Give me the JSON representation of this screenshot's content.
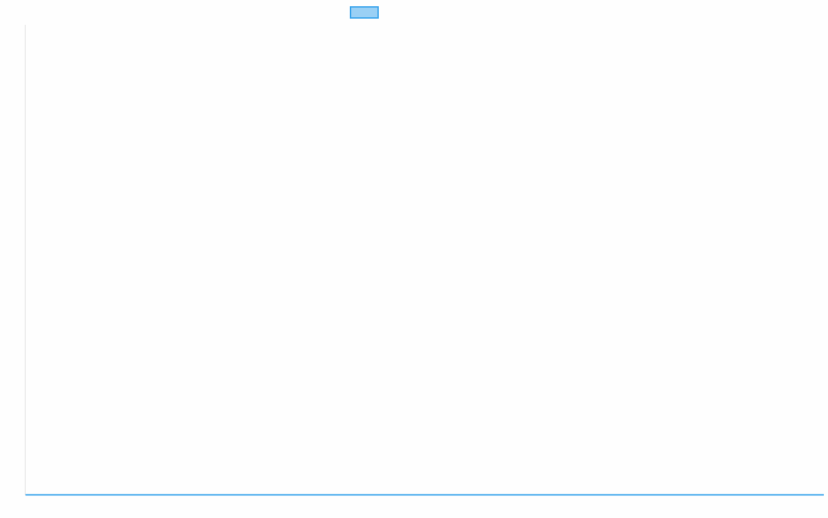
{
  "chart_data": {
    "type": "line",
    "title": "",
    "xlabel": "",
    "ylabel": "",
    "categories": [],
    "series": [
      {
        "values": [],
        "color": "#36a2eb",
        "fill": "#9ad0f5"
      }
    ],
    "legend": {
      "placement": "top",
      "entries": [
        ""
      ]
    },
    "grid": false
  }
}
